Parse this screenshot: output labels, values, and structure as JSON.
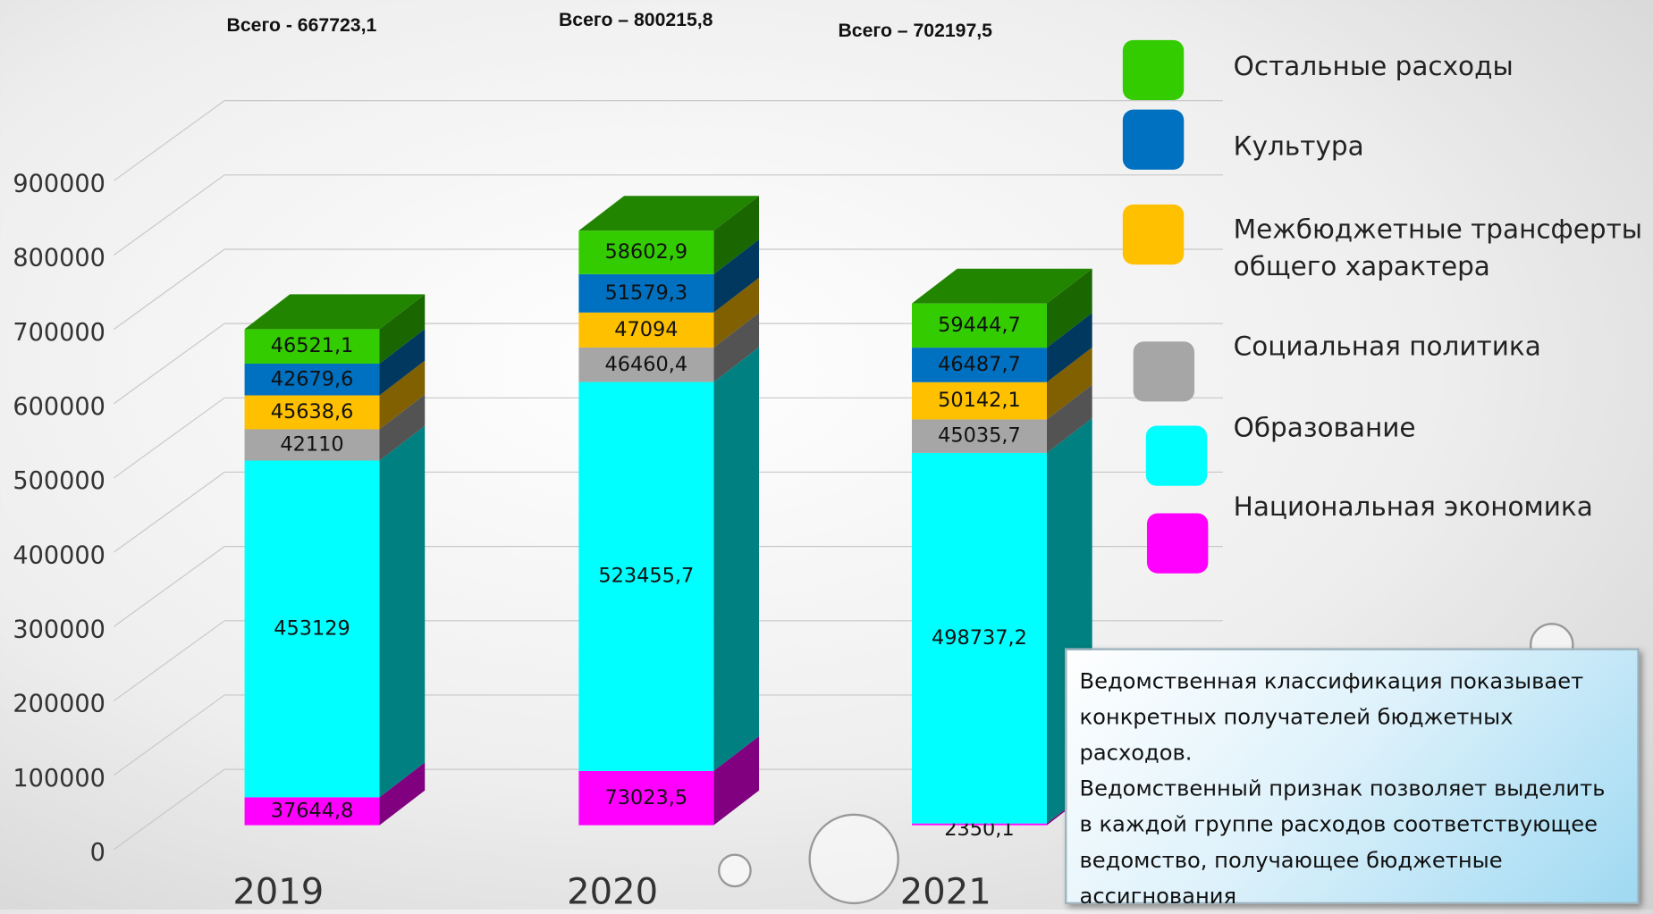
{
  "chart_data": {
    "type": "stacked-bar-3d",
    "categories": [
      "2019",
      "2020",
      "2021"
    ],
    "annotations": [
      "Всего - 667723,1",
      "Всего – 800215,8",
      "Всего – 702197,5"
    ],
    "series": [
      {
        "name": "Национальная экономика",
        "color": "#ff00ff",
        "values": [
          37644.8,
          73023.5,
          2350.1
        ],
        "value_labels": [
          "37644,8",
          "73023,5",
          "2350,1"
        ]
      },
      {
        "name": "Образование",
        "color": "#00ffff",
        "values": [
          453129,
          523455.7,
          498737.2
        ],
        "value_labels": [
          "453129",
          "523455,7",
          "498737,2"
        ]
      },
      {
        "name": "Социальная политика",
        "color": "#a6a6a6",
        "values": [
          42110,
          46460.4,
          45035.7
        ],
        "value_labels": [
          "42110",
          "46460,4",
          "45035,7"
        ]
      },
      {
        "name": "Межбюджетные трансферты общего характера",
        "color": "#ffc000",
        "values": [
          45638.6,
          47094,
          50142.1
        ],
        "value_labels": [
          "45638,6",
          "47094",
          "50142,1"
        ]
      },
      {
        "name": "Культура",
        "color": "#0070c0",
        "values": [
          42679.6,
          51579.3,
          46487.7
        ],
        "value_labels": [
          "42679,6",
          "51579,3",
          "46487,7"
        ]
      },
      {
        "name": "Остальные расходы",
        "color": "#33cc00",
        "values": [
          46521.1,
          58602.9,
          59444.7
        ],
        "value_labels": [
          "46521,1",
          "58602,9",
          "59444,7"
        ]
      }
    ],
    "ylim": [
      0,
      900000
    ],
    "yticks": [
      0,
      100000,
      200000,
      300000,
      400000,
      500000,
      600000,
      700000,
      800000,
      900000
    ],
    "grid": true
  },
  "note": {
    "paragraphs": [
      " Ведомственная классификация показывает конкретных получателей бюджетных расходов.",
      " Ведомственный признак позволяет выделить в каждой группе расходов соответствующее ведомство, получающее бюджетные ассигнования"
    ]
  }
}
